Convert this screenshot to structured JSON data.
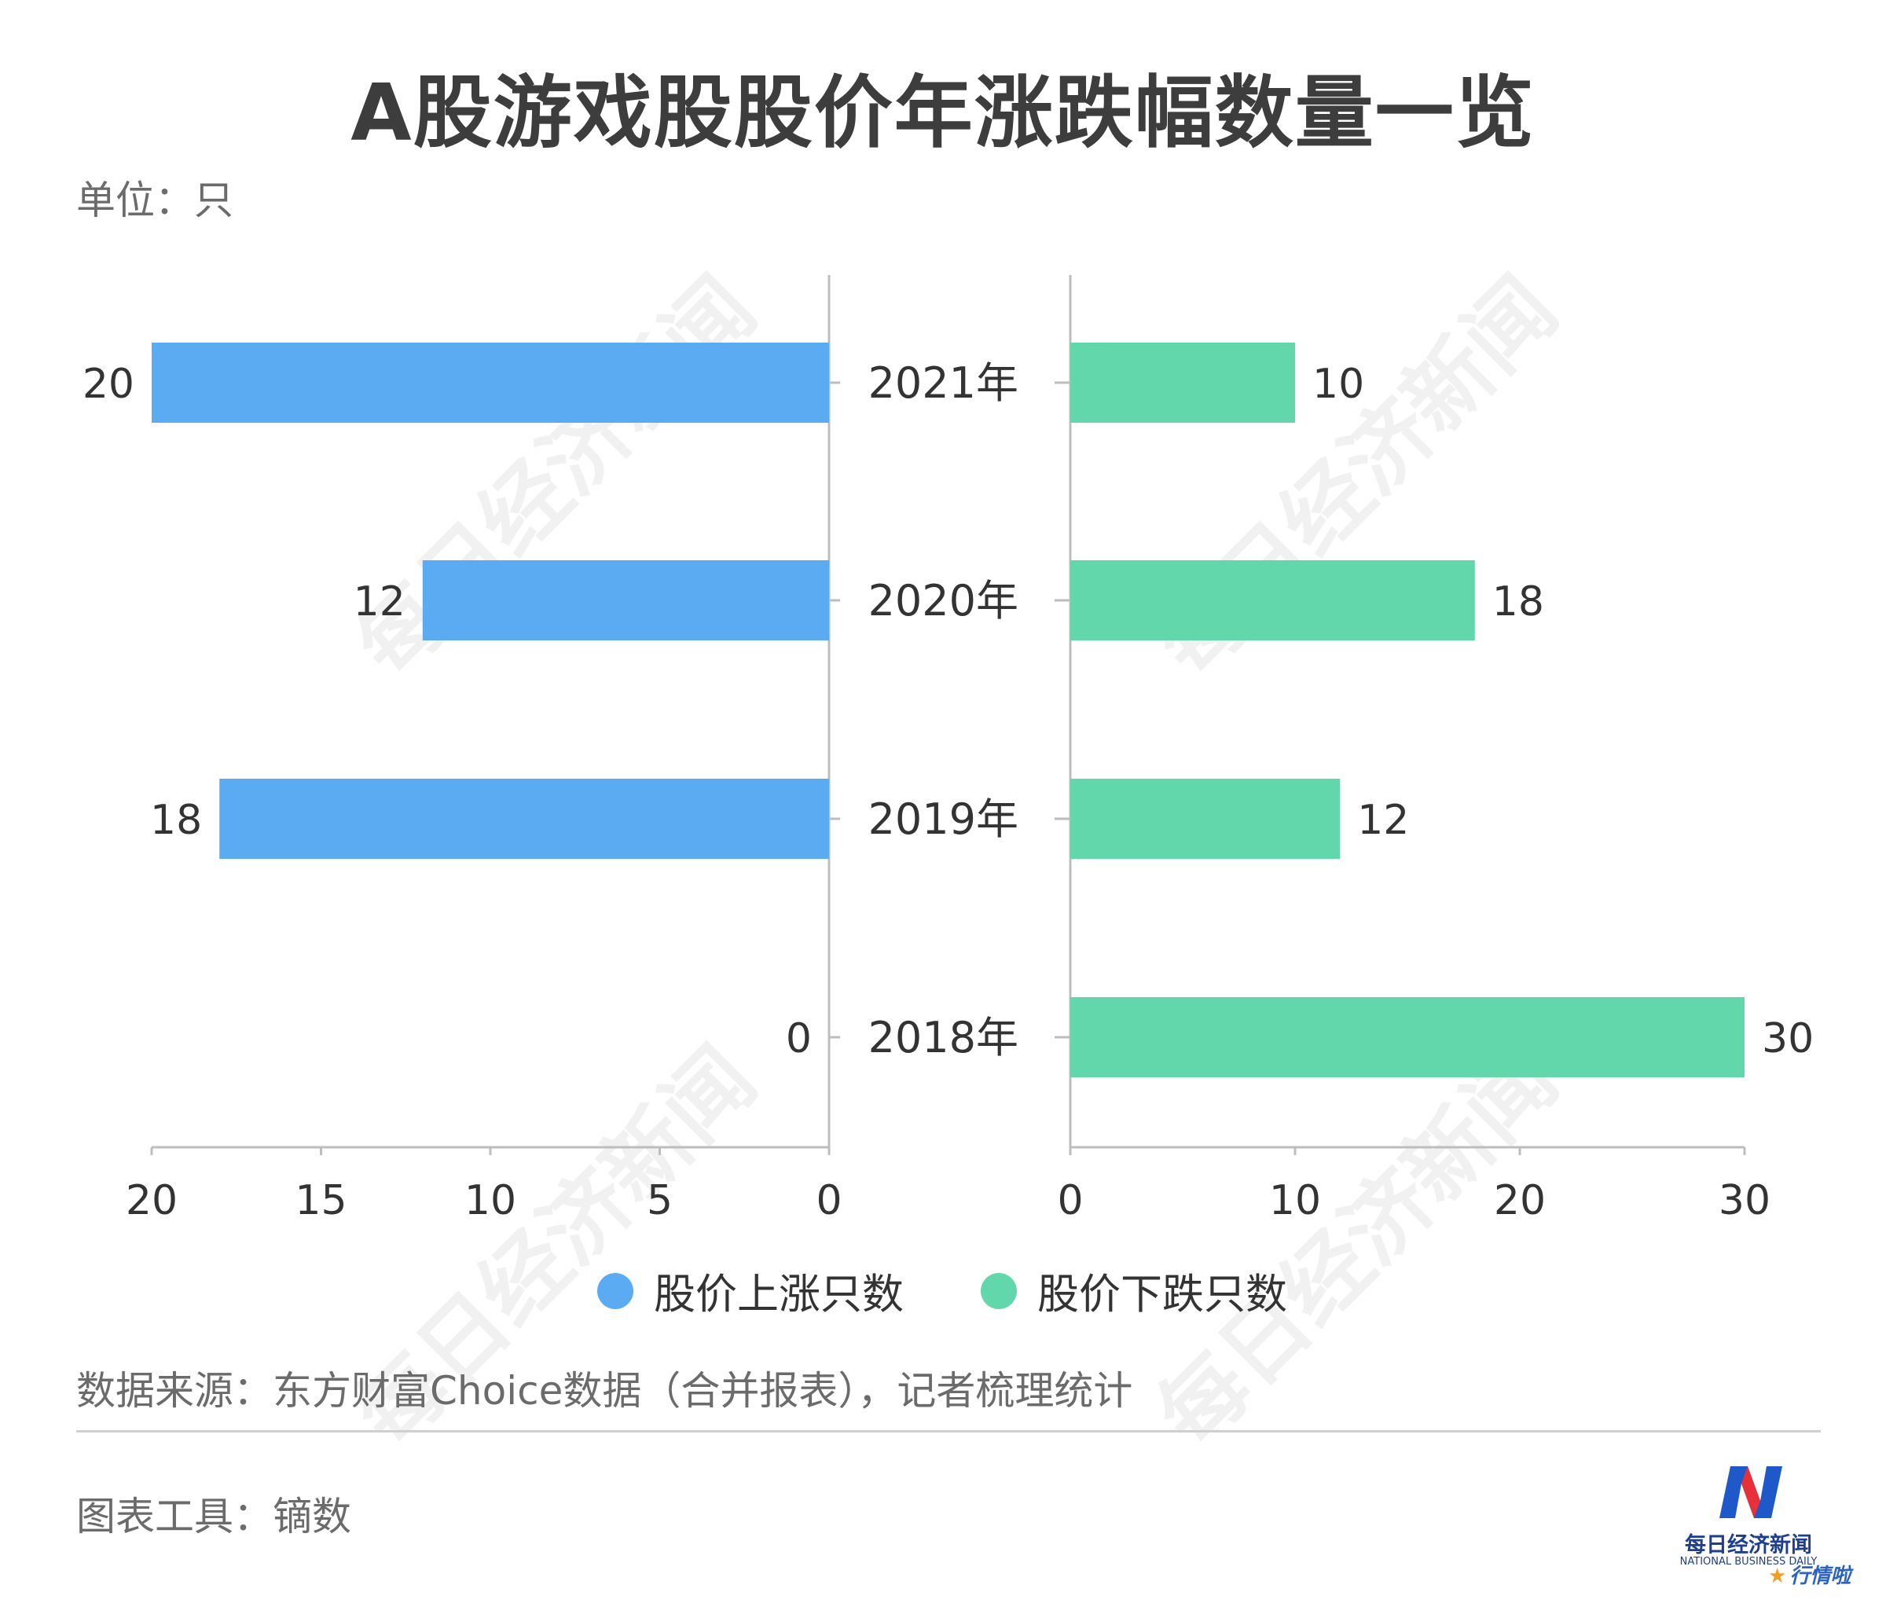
{
  "title": "A股游戏股股价年涨跌幅数量一览",
  "unit": "单位：只",
  "source": "数据来源：东方财富Choice数据（合并报表），记者梳理统计",
  "tool": "图表工具：镝数",
  "watermark": "每日经济新闻",
  "logo": {
    "name_cn": "每日经济新闻",
    "name_en": "NATIONAL BUSINESS DAILY",
    "badge": "行情啦"
  },
  "colors": {
    "rise": "#5aabf1",
    "fall": "#62d7ab",
    "axis": "#bdbdbd",
    "text": "#333333"
  },
  "chart_data": [
    {
      "type": "bar",
      "orientation": "horizontal",
      "direction": "reversed",
      "categories": [
        "2021年",
        "2020年",
        "2019年",
        "2018年"
      ],
      "series": [
        {
          "name": "股价上涨只数",
          "values": [
            20,
            12,
            18,
            0
          ]
        }
      ],
      "xlim": [
        0,
        20
      ],
      "xticks": [
        20,
        15,
        10,
        5,
        0
      ]
    },
    {
      "type": "bar",
      "orientation": "horizontal",
      "categories": [
        "2021年",
        "2020年",
        "2019年",
        "2018年"
      ],
      "series": [
        {
          "name": "股价下跌只数",
          "values": [
            10,
            18,
            12,
            30
          ]
        }
      ],
      "xlim": [
        0,
        30
      ],
      "xticks": [
        0,
        10,
        20,
        30
      ]
    }
  ],
  "legend": [
    {
      "label": "股价上涨只数",
      "color": "#5aabf1"
    },
    {
      "label": "股价下跌只数",
      "color": "#62d7ab"
    }
  ]
}
